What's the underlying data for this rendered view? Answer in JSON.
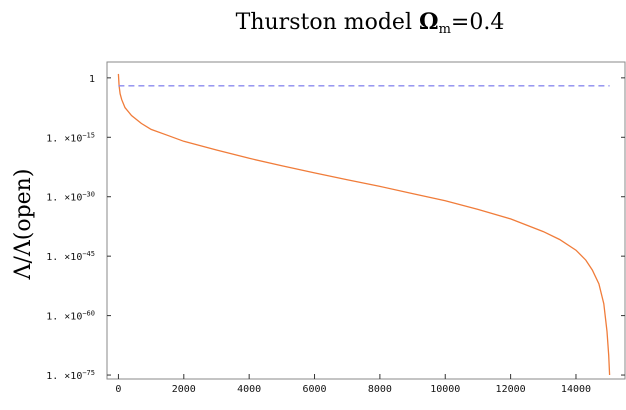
{
  "chart_data": {
    "type": "line",
    "title": {
      "prefix": "Thurston model ",
      "symbol": "Ω",
      "subscript": "m",
      "suffix": "=0.4"
    },
    "xlabel": "",
    "ylabel": "Λ/Λ(open)",
    "y_scale": "log10",
    "xlim": [
      -350,
      15500
    ],
    "ylim_log10": [
      -76,
      4
    ],
    "x_ticks": [
      {
        "value": 0,
        "label": "0"
      },
      {
        "value": 2000,
        "label": "2000"
      },
      {
        "value": 4000,
        "label": "4000"
      },
      {
        "value": 6000,
        "label": "6000"
      },
      {
        "value": 8000,
        "label": "8000"
      },
      {
        "value": 10000,
        "label": "10000"
      },
      {
        "value": 12000,
        "label": "12000"
      },
      {
        "value": 14000,
        "label": "14000"
      }
    ],
    "y_ticks": [
      {
        "log10": 0,
        "mantissa": "1",
        "base": "",
        "exponent": ""
      },
      {
        "log10": -15,
        "mantissa": "1.",
        "base": "10",
        "exponent": "15"
      },
      {
        "log10": -30,
        "mantissa": "1.",
        "base": "10",
        "exponent": "30"
      },
      {
        "log10": -45,
        "mantissa": "1.",
        "base": "10",
        "exponent": "45"
      },
      {
        "log10": -60,
        "mantissa": "1.",
        "base": "10",
        "exponent": "60"
      },
      {
        "log10": -75,
        "mantissa": "1.",
        "base": "10",
        "exponent": "75"
      }
    ],
    "series": [
      {
        "color": "#f07c3a",
        "style": "solid",
        "x": [
          0,
          20,
          50,
          100,
          200,
          400,
          700,
          1000,
          1500,
          2000,
          3000,
          4000,
          5000,
          6000,
          7000,
          8000,
          9000,
          10000,
          11000,
          12000,
          13000,
          13500,
          14000,
          14300,
          14500,
          14700,
          14850,
          14950,
          15000,
          15030
        ],
        "y_log10": [
          1,
          -2,
          -4,
          -5.5,
          -7.5,
          -9.5,
          -11.5,
          -13,
          -14.5,
          -16,
          -18.2,
          -20.3,
          -22.2,
          -24,
          -25.7,
          -27.4,
          -29.2,
          -31,
          -33.2,
          -35.6,
          -38.8,
          -40.8,
          -43.5,
          -46,
          -48.5,
          -52,
          -57,
          -64,
          -70,
          -75
        ]
      },
      {
        "color": "#8a8aee",
        "style": "dashed",
        "x": [
          0,
          15030
        ],
        "y_log10": [
          -2,
          -2
        ]
      }
    ],
    "grid": false,
    "legend": "none"
  }
}
